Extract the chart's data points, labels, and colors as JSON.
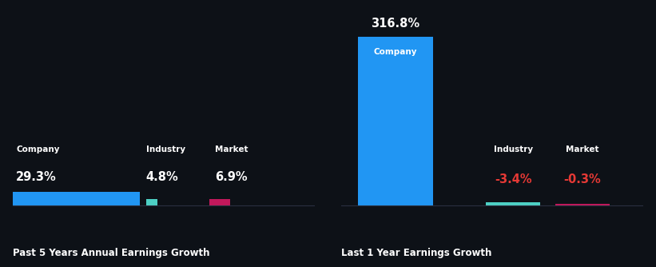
{
  "bg_color": "#0d1117",
  "left_chart": {
    "title": "Past 5 Years Annual Earnings Growth",
    "bars": [
      {
        "label": "Company",
        "value": 29.3,
        "color": "#2196f3",
        "label_color": "#ffffff",
        "value_color": "#ffffff"
      },
      {
        "label": "Industry",
        "value": 4.8,
        "color": "#4dd0c4",
        "label_color": "#ffffff",
        "value_color": "#ffffff"
      },
      {
        "label": "Market",
        "value": 6.9,
        "color": "#c2185b",
        "label_color": "#ffffff",
        "value_color": "#ffffff"
      }
    ],
    "max_value": 29.3
  },
  "right_chart": {
    "title": "Last 1 Year Earnings Growth",
    "bars": [
      {
        "label": "Company",
        "value": 316.8,
        "color": "#2196f3",
        "label_color": "#ffffff",
        "value_color": "#ffffff"
      },
      {
        "label": "Industry",
        "value": -3.4,
        "color": "#4dd0c4",
        "label_color": "#ffffff",
        "value_color": "#e53935"
      },
      {
        "label": "Market",
        "value": -0.3,
        "color": "#c2185b",
        "label_color": "#ffffff",
        "value_color": "#e53935"
      }
    ],
    "max_value": 316.8
  }
}
